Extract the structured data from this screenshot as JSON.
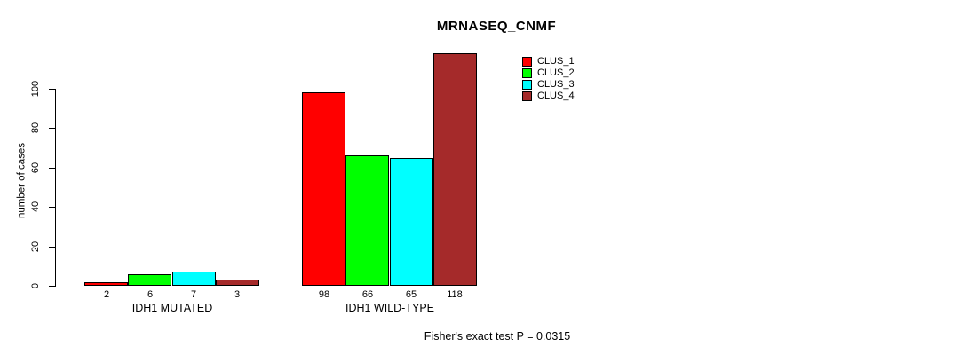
{
  "chart_data": {
    "type": "bar",
    "title": "MRNASEQ_CNMF",
    "ylabel": "number of cases",
    "xlabel": "",
    "yticks": [
      0,
      20,
      40,
      60,
      80,
      100
    ],
    "ylim": [
      0,
      118
    ],
    "grid": false,
    "legend_position": "top-right",
    "categories": [
      "IDH1 MUTATED",
      "IDH1 WILD-TYPE"
    ],
    "series": [
      {
        "name": "CLUS_1",
        "color": "#FF0000",
        "values": [
          2,
          98
        ]
      },
      {
        "name": "CLUS_2",
        "color": "#00FF00",
        "values": [
          6,
          66
        ]
      },
      {
        "name": "CLUS_3",
        "color": "#00FFFF",
        "values": [
          7,
          65
        ]
      },
      {
        "name": "CLUS_4",
        "color": "#A52A2A",
        "values": [
          3,
          118
        ]
      }
    ],
    "groups": [
      {
        "label": "IDH1 MUTATED",
        "values": [
          2,
          6,
          7,
          3
        ]
      },
      {
        "label": "IDH1 WILD-TYPE",
        "values": [
          98,
          66,
          65,
          118
        ]
      }
    ],
    "bar_value_labels": [
      [
        "2",
        "6",
        "7",
        "3"
      ],
      [
        "98",
        "66",
        "65",
        "118"
      ]
    ],
    "footnote": "Fisher's exact test P = 0.0315",
    "colors": {
      "axis": "#000000",
      "text": "#000000",
      "background": "#FFFFFF"
    }
  }
}
